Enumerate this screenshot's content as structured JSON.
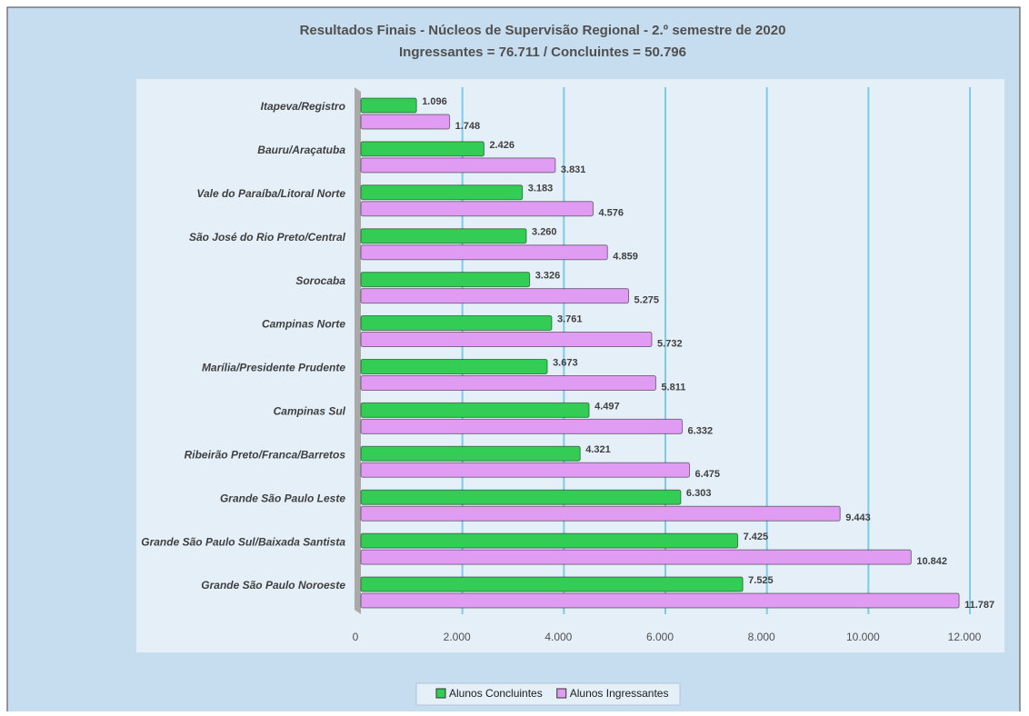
{
  "chart_data": {
    "type": "bar",
    "orientation": "horizontal",
    "title": "Resultados Finais - Núcleos de Supervisão Regional - 2.º semestre de 2020",
    "subtitle": "Ingressantes = 76.711 / Concluintes = 50.796",
    "categories": [
      "Itapeva/Registro",
      "Bauru/Araçatuba",
      "Vale do Paraíba/Litoral Norte",
      "São José do Rio Preto/Central",
      "Sorocaba",
      "Campinas Norte",
      "Marília/Presidente Prudente",
      "Campinas Sul",
      "Ribeirão Preto/Franca/Barretos",
      "Grande São Paulo Leste",
      "Grande São Paulo Sul/Baixada Santista",
      "Grande São Paulo Noroeste"
    ],
    "series": [
      {
        "name": "Alunos Concluintes",
        "color": "#33cc55",
        "values": [
          1096,
          2426,
          3183,
          3260,
          3326,
          3761,
          3673,
          4497,
          4321,
          6303,
          7425,
          7525
        ],
        "value_labels": [
          "1.096",
          "2.426",
          "3.183",
          "3.260",
          "3.326",
          "3.761",
          "3.673",
          "4.497",
          "4.321",
          "6.303",
          "7.425",
          "7.525"
        ]
      },
      {
        "name": "Alunos Ingressantes",
        "color": "#df9cf2",
        "values": [
          1748,
          3831,
          4576,
          4859,
          5275,
          5732,
          5811,
          6332,
          6475,
          9443,
          10842,
          11787
        ],
        "value_labels": [
          "1.748",
          "3.831",
          "4.576",
          "4.859",
          "5.275",
          "5.732",
          "5.811",
          "6.332",
          "6.475",
          "9.443",
          "10.842",
          "11.787"
        ]
      }
    ],
    "xlim": [
      0,
      12000
    ],
    "xticks": [
      0,
      {
        "value": 2000,
        "label": "2.000"
      },
      {
        "value": 4000,
        "label": "4.000"
      },
      {
        "value": 6000,
        "label": "6.000"
      },
      {
        "value": 8000,
        "label": "8.000"
      },
      {
        "value": 10000,
        "label": "10.000"
      },
      {
        "value": 12000,
        "label": "12.000"
      }
    ],
    "grid": true,
    "legend": "bottom"
  }
}
